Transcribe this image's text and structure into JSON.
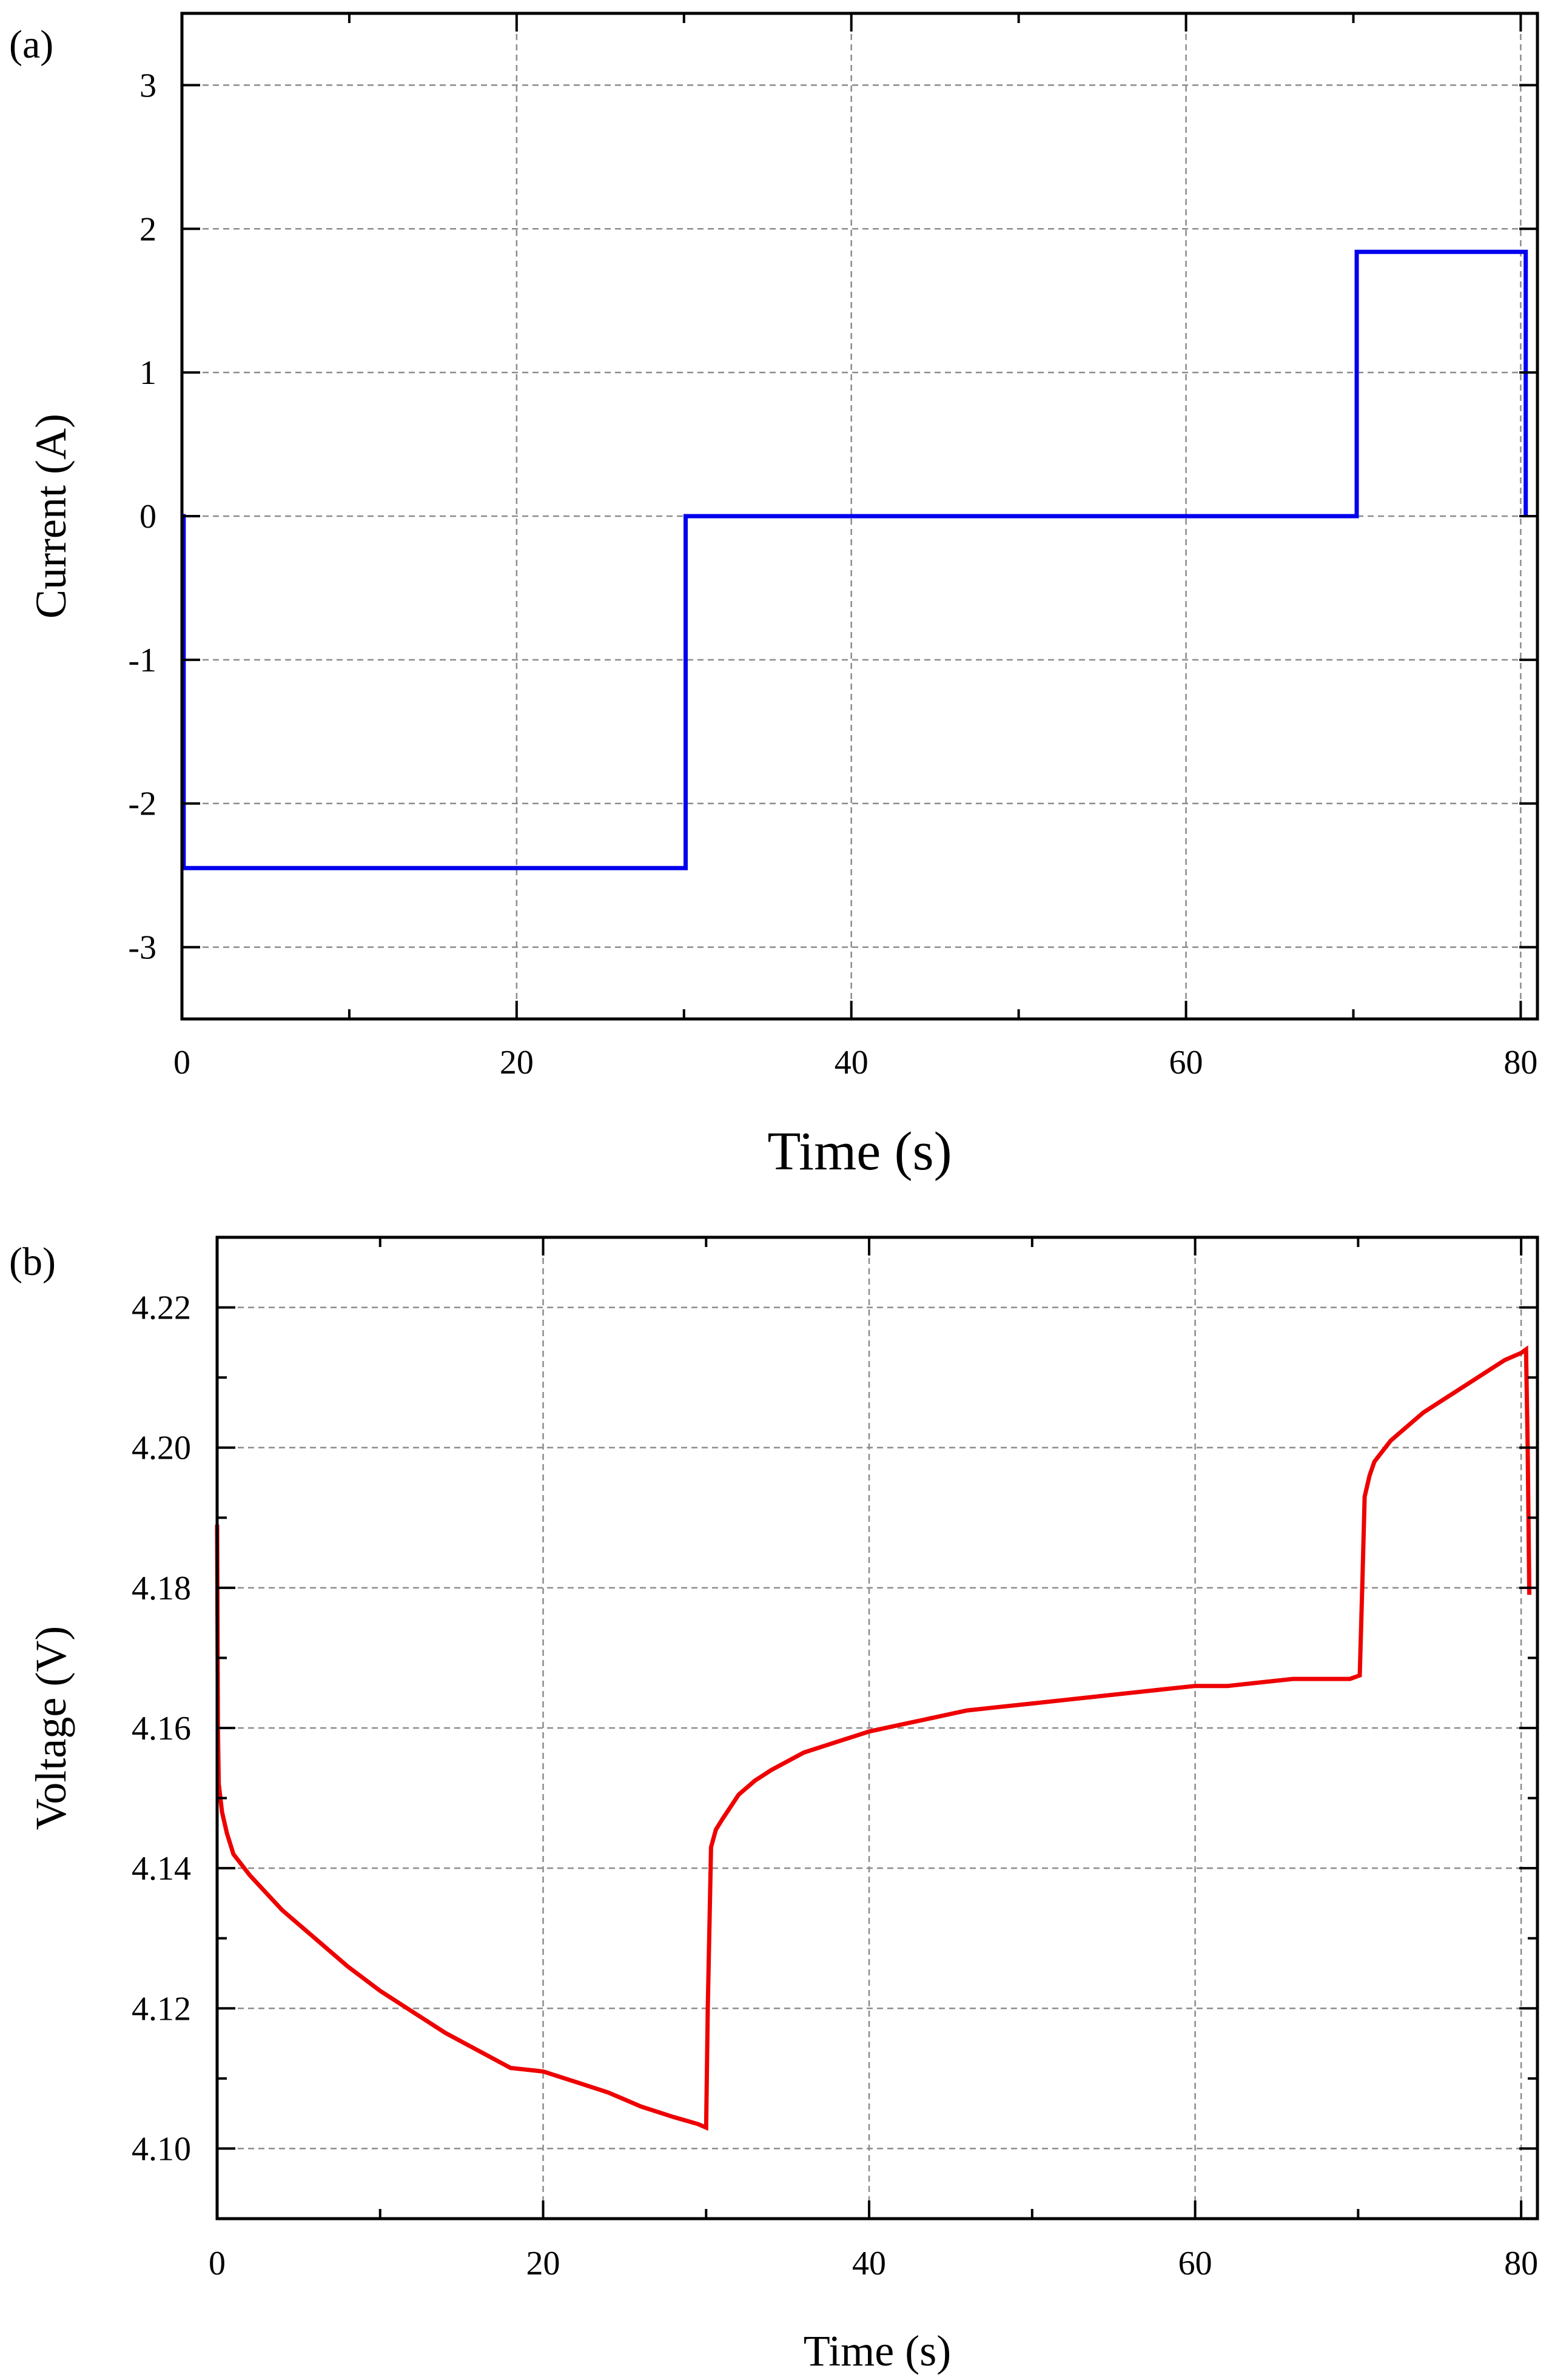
{
  "figure": {
    "background": "#ffffff",
    "grid_color": "#8c8c8c",
    "axis_color": "#000000"
  },
  "chart_data": [
    {
      "panel_label": "(a)",
      "type": "line",
      "xlabel": "Time (s)",
      "ylabel": "Current (A)",
      "xlim": [
        0,
        81
      ],
      "ylim": [
        -3.5,
        3.5
      ],
      "x_ticks": [
        0,
        20,
        40,
        60,
        80
      ],
      "x_tick_labels": [
        "0",
        "20",
        "40",
        "60",
        "80"
      ],
      "x_minor_ticks": [
        10,
        30,
        50,
        70
      ],
      "y_ticks": [
        -3,
        -2,
        -1,
        0,
        1,
        2,
        3
      ],
      "y_tick_labels": [
        "-3",
        "-2",
        "-1",
        "0",
        "1",
        "2",
        "3"
      ],
      "grid": true,
      "grid_style": "dashed",
      "series": [
        {
          "color": "#0000ee",
          "x": [
            0,
            0.1,
            0.1,
            30.1,
            30.1,
            70.2,
            70.2,
            80.3,
            80.3
          ],
          "y": [
            0,
            0,
            -2.45,
            -2.45,
            0,
            0,
            1.84,
            1.84,
            0
          ]
        }
      ]
    },
    {
      "panel_label": "(b)",
      "type": "line",
      "xlabel": "Time (s)",
      "ylabel": "Voltage (V)",
      "xlim": [
        0,
        81
      ],
      "ylim": [
        4.09,
        4.23
      ],
      "x_ticks": [
        0,
        20,
        40,
        60,
        80
      ],
      "x_tick_labels": [
        "0",
        "20",
        "40",
        "60",
        "80"
      ],
      "x_minor_ticks": [
        10,
        30,
        50,
        70
      ],
      "y_ticks": [
        4.1,
        4.12,
        4.14,
        4.16,
        4.18,
        4.2,
        4.22
      ],
      "y_tick_labels": [
        "4.10",
        "4.12",
        "4.14",
        "4.16",
        "4.18",
        "4.20",
        "4.22"
      ],
      "y_minor_ticks": [
        4.11,
        4.13,
        4.15,
        4.17,
        4.19,
        4.21
      ],
      "grid": true,
      "grid_style": "dashed",
      "series": [
        {
          "color": "#ee0000",
          "x": [
            0,
            0.05,
            0.1,
            0.3,
            0.6,
            1.0,
            2,
            3,
            4,
            6,
            8,
            10,
            12,
            14,
            16,
            18,
            20,
            22,
            24,
            26,
            28,
            29.5,
            30.0,
            30.1,
            30.3,
            30.6,
            31,
            32,
            33,
            34,
            36,
            38,
            40,
            42,
            44,
            46,
            48,
            50,
            52,
            54,
            56,
            58,
            60,
            62,
            64,
            66,
            68,
            69.5,
            70.1,
            70.25,
            70.4,
            70.7,
            71,
            72,
            73,
            74,
            75,
            76,
            77,
            78,
            79,
            80,
            80.3,
            80.4,
            80.5
          ],
          "y": [
            4.189,
            4.16,
            4.152,
            4.148,
            4.145,
            4.142,
            4.139,
            4.1365,
            4.134,
            4.13,
            4.126,
            4.1225,
            4.1195,
            4.1165,
            4.114,
            4.1115,
            4.111,
            4.1095,
            4.108,
            4.106,
            4.1045,
            4.1035,
            4.103,
            4.12,
            4.143,
            4.1455,
            4.147,
            4.1505,
            4.1525,
            4.154,
            4.1565,
            4.158,
            4.1595,
            4.1605,
            4.1615,
            4.1625,
            4.163,
            4.1635,
            4.164,
            4.1645,
            4.165,
            4.1655,
            4.166,
            4.166,
            4.1665,
            4.167,
            4.167,
            4.167,
            4.1675,
            4.18,
            4.193,
            4.196,
            4.198,
            4.201,
            4.203,
            4.205,
            4.2065,
            4.208,
            4.2095,
            4.211,
            4.2125,
            4.2135,
            4.214,
            4.2,
            4.179
          ]
        }
      ]
    }
  ]
}
